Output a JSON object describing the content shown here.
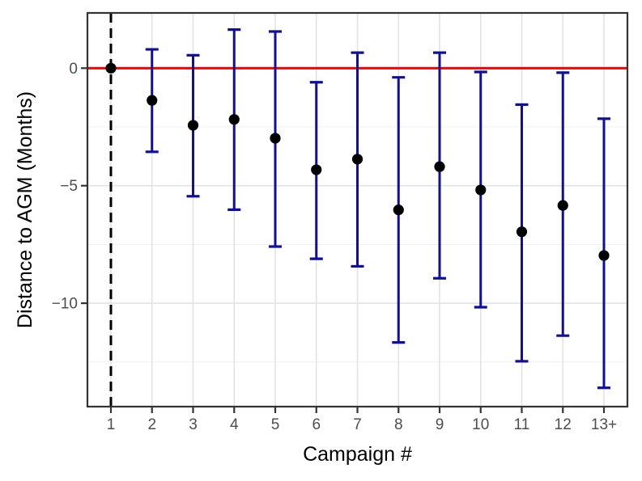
{
  "figure": {
    "x_axis_label": "Campaign #",
    "y_axis_label": "Distance to AGM (Months)"
  },
  "chart_data": {
    "type": "scatter",
    "subtype": "point-estimates-with-error-bars",
    "xlabel": "Campaign #",
    "ylabel": "Distance to AGM (Months)",
    "categories": [
      "1",
      "2",
      "3",
      "4",
      "5",
      "6",
      "7",
      "8",
      "9",
      "10",
      "11",
      "12",
      "13+"
    ],
    "series": [
      {
        "name": "estimate",
        "values": [
          0,
          -1.37,
          -2.43,
          -2.18,
          -2.98,
          -4.32,
          -3.87,
          -6.03,
          -4.19,
          -5.18,
          -6.96,
          -5.84,
          -7.97
        ],
        "ci_low": [
          null,
          -3.56,
          -5.45,
          -6.02,
          -7.59,
          -8.11,
          -8.43,
          -11.67,
          -8.94,
          -10.17,
          -12.47,
          -11.38,
          -13.6
        ],
        "ci_high": [
          null,
          0.8,
          0.55,
          1.64,
          1.56,
          -0.6,
          0.66,
          -0.39,
          0.66,
          -0.16,
          -1.55,
          -0.19,
          -2.15
        ]
      }
    ],
    "ylim": [
      -14.4,
      2.35
    ],
    "y_ticks": {
      "values": [
        0,
        -5,
        -10
      ],
      "labels": [
        "0",
        "−5",
        "−10"
      ]
    },
    "y_minor_gridlines": [
      -2.5,
      -7.5,
      -12.5
    ],
    "reference_lines": {
      "horizontal_y": 0,
      "vertical_at_category": "1"
    },
    "grid": "on",
    "legend": "none",
    "colors": {
      "error_bar": "#0f0f9b",
      "point": "#000000",
      "zero_line": "#fe0000",
      "dashed_line": "#000000",
      "grid_major": "#e3e3e3",
      "grid_minor": "#efefef",
      "panel_border": "#333333",
      "tick_mark": "#333333",
      "tick_label": "#4d4d4d",
      "axis_title": "#000000",
      "background": "#ffffff"
    }
  }
}
